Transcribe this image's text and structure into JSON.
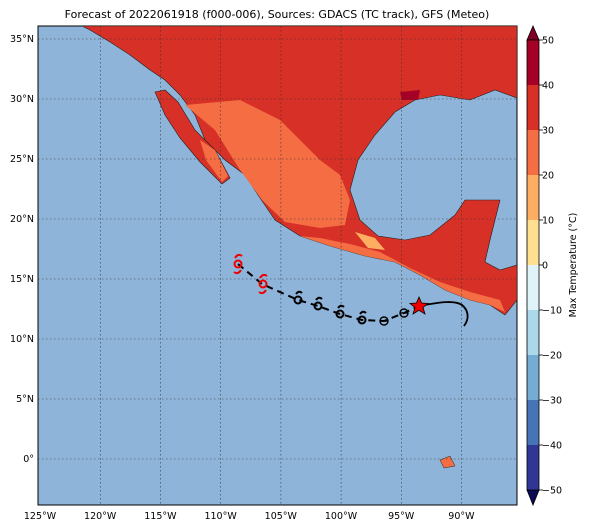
{
  "title": "Forecast of 2022061918 (f000-006), Sources: GDACS (TC track), GFS (Meteo)",
  "lon_ticks": [
    "125°W",
    "120°W",
    "115°W",
    "110°W",
    "105°W",
    "100°W",
    "95°W",
    "90°W"
  ],
  "lat_ticks": [
    "35°N",
    "30°N",
    "25°N",
    "20°N",
    "15°N",
    "10°N",
    "5°N",
    "0°"
  ],
  "colorbar": {
    "label": "Max Temperature (°C)",
    "ticks": [
      {
        "value": 50,
        "label": "50"
      },
      {
        "value": 40,
        "label": "40"
      },
      {
        "value": 30,
        "label": "30"
      },
      {
        "value": 20,
        "label": "20"
      },
      {
        "value": 10,
        "label": "10"
      },
      {
        "value": 0,
        "label": "0"
      },
      {
        "value": -10,
        "label": "−10"
      },
      {
        "value": -20,
        "label": "−20"
      },
      {
        "value": -30,
        "label": "−30"
      },
      {
        "value": -40,
        "label": "−40"
      },
      {
        "value": -50,
        "label": "−50"
      }
    ]
  }
}
